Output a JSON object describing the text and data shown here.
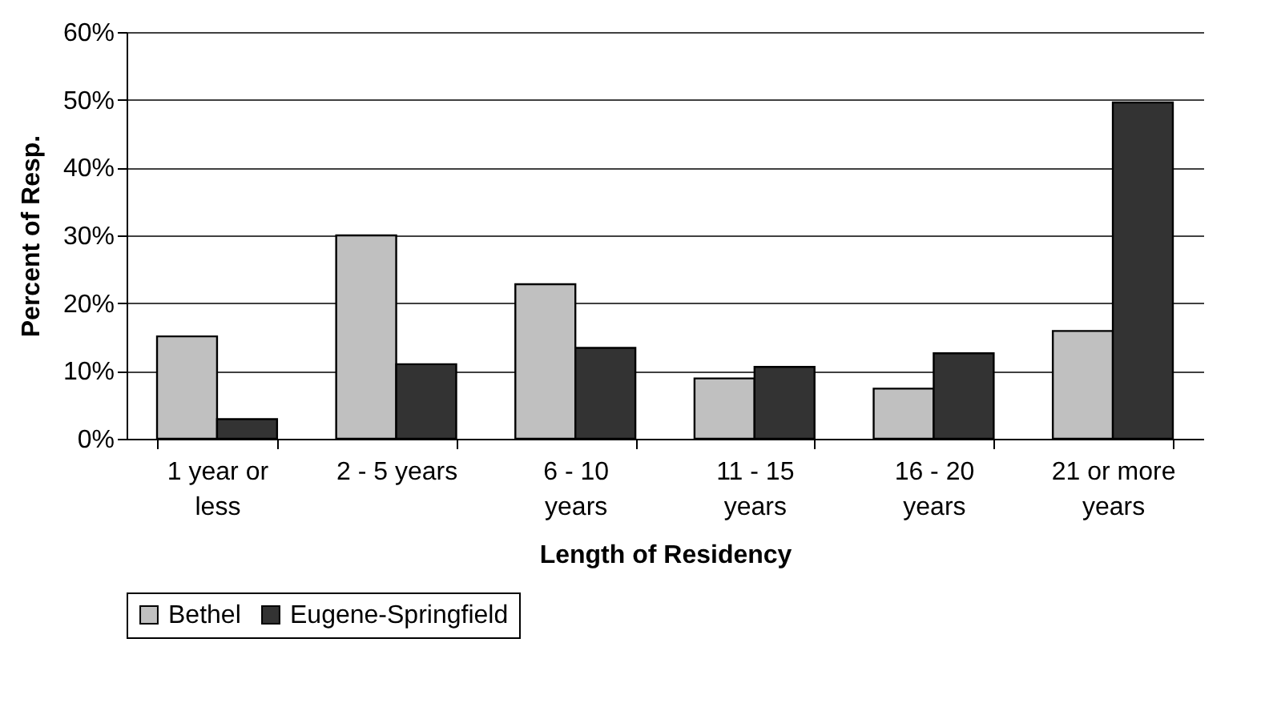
{
  "chart_data": {
    "type": "bar",
    "xlabel": "Length of Residency",
    "ylabel": "Percent of Resp.",
    "categories": [
      "1 year or less",
      "2 - 5 years",
      "6 - 10 years",
      "11 - 15 years",
      "16 - 20 years",
      "21 or more years"
    ],
    "series": [
      {
        "name": "Bethel",
        "color": "#c0c0c0",
        "values": [
          15.1,
          30.0,
          22.8,
          8.9,
          7.4,
          15.9
        ]
      },
      {
        "name": "Eugene-Springfield",
        "color": "#333333",
        "values": [
          2.9,
          11.0,
          13.4,
          10.6,
          12.6,
          49.6
        ]
      }
    ],
    "ylim": [
      0,
      60
    ],
    "yticks": [
      {
        "value": 0,
        "label": "0%"
      },
      {
        "value": 10,
        "label": "10%"
      },
      {
        "value": 20,
        "label": "20%"
      },
      {
        "value": 30,
        "label": "30%"
      },
      {
        "value": 40,
        "label": "40%"
      },
      {
        "value": 50,
        "label": "50%"
      },
      {
        "value": 60,
        "label": "60%"
      }
    ],
    "grid": "y",
    "legend": "bottom"
  }
}
